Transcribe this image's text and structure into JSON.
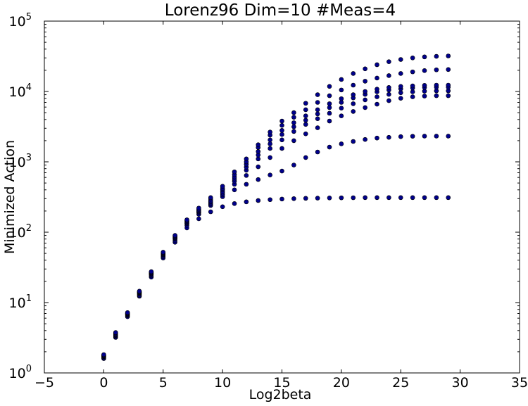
{
  "chart_data": {
    "type": "scatter",
    "title": "Lorenz96 Dim=10 #Meas=4",
    "xlabel": "Log2beta",
    "ylabel": "Minimized Action",
    "xlim": [
      -5,
      35
    ],
    "ylim": [
      1,
      100000
    ],
    "yscale": "log",
    "x_ticks": [
      "−5",
      "0",
      "5",
      "10",
      "15",
      "20",
      "25",
      "30",
      "35"
    ],
    "y_ticks": [
      {
        "base": "10",
        "exp": "0"
      },
      {
        "base": "10",
        "exp": "1"
      },
      {
        "base": "10",
        "exp": "2"
      },
      {
        "base": "10",
        "exp": "3"
      },
      {
        "base": "10",
        "exp": "4"
      },
      {
        "base": "10",
        "exp": "5"
      }
    ],
    "grid": false,
    "marker_color": "#00008b",
    "x": [
      0,
      1,
      2,
      3,
      4,
      5,
      6,
      7,
      8,
      9,
      10,
      11,
      12,
      13,
      14,
      15,
      16,
      17,
      18,
      19,
      20,
      21,
      22,
      23,
      24,
      25,
      26,
      27,
      28,
      29
    ],
    "series": [
      {
        "values": [
          1.6,
          3.2,
          6.3,
          12.3,
          23,
          43,
          72,
          115,
          155,
          195,
          230,
          255,
          270,
          282,
          290,
          296,
          300,
          303,
          305,
          307,
          308,
          309,
          310,
          310,
          310,
          310,
          310,
          310,
          310,
          310
        ]
      },
      {
        "values": [
          1.65,
          3.3,
          6.5,
          12.7,
          24,
          45,
          76,
          125,
          180,
          240,
          320,
          400,
          480,
          560,
          650,
          740,
          900,
          1150,
          1380,
          1620,
          1800,
          1950,
          2080,
          2180,
          2230,
          2280,
          2310,
          2320,
          2320,
          2320
        ]
      },
      {
        "values": [
          1.7,
          3.4,
          6.7,
          13.2,
          25,
          47,
          80,
          132,
          190,
          250,
          340,
          480,
          640,
          850,
          1150,
          1550,
          2000,
          2500,
          3050,
          3800,
          4500,
          5200,
          5900,
          6600,
          7400,
          8000,
          8400,
          8600,
          8700,
          8700
        ]
      },
      {
        "values": [
          1.72,
          3.45,
          6.8,
          13.5,
          25.5,
          48,
          82,
          135,
          195,
          260,
          360,
          530,
          760,
          1100,
          1550,
          2050,
          2700,
          3400,
          4100,
          4900,
          5800,
          6700,
          7600,
          8400,
          9100,
          9600,
          9900,
          10100,
          10200,
          10200
        ]
      },
      {
        "values": [
          1.75,
          3.5,
          6.9,
          13.8,
          26,
          49,
          84,
          138,
          200,
          270,
          380,
          570,
          840,
          1250,
          1800,
          2450,
          3150,
          3900,
          4800,
          5900,
          7000,
          8100,
          9100,
          9900,
          10500,
          10900,
          11200,
          11400,
          11500,
          11500
        ]
      },
      {
        "values": [
          1.78,
          3.6,
          7.0,
          14.0,
          26.5,
          50,
          86,
          142,
          205,
          280,
          400,
          610,
          920,
          1400,
          2050,
          2800,
          3600,
          4500,
          5500,
          6700,
          7900,
          9000,
          10000,
          10800,
          11400,
          11800,
          12000,
          12200,
          12300,
          12300
        ]
      },
      {
        "values": [
          1.8,
          3.7,
          7.1,
          14.3,
          27,
          51,
          88,
          146,
          212,
          295,
          420,
          660,
          1000,
          1600,
          2400,
          3300,
          4300,
          5500,
          7000,
          8700,
          10500,
          12300,
          14000,
          15500,
          16800,
          18000,
          19000,
          19800,
          20300,
          20500
        ]
      },
      {
        "values": [
          1.82,
          3.75,
          7.2,
          14.5,
          27.5,
          52,
          90,
          150,
          220,
          310,
          450,
          720,
          1100,
          1750,
          2650,
          3800,
          5000,
          6800,
          9000,
          11800,
          14800,
          18000,
          21000,
          24000,
          26500,
          28500,
          30000,
          31000,
          31600,
          32000
        ]
      }
    ]
  }
}
